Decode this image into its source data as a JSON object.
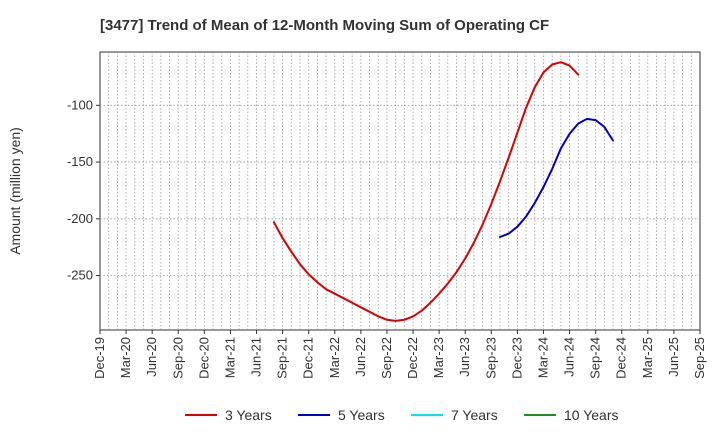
{
  "chart_data": {
    "type": "line",
    "title": "[3477]  Trend of Mean of 12-Month Moving Sum of Operating CF",
    "xlabel": "",
    "ylabel": "Amount (million yen)",
    "ylim": [
      -298,
      -53
    ],
    "yticks": [
      -100,
      -150,
      -200,
      -250
    ],
    "xlim_months": [
      0,
      69
    ],
    "x_tick_labels": [
      {
        "label": "Dec-19",
        "m": 0
      },
      {
        "label": "Mar-20",
        "m": 3
      },
      {
        "label": "Jun-20",
        "m": 6
      },
      {
        "label": "Sep-20",
        "m": 9
      },
      {
        "label": "Dec-20",
        "m": 12
      },
      {
        "label": "Mar-21",
        "m": 15
      },
      {
        "label": "Jun-21",
        "m": 18
      },
      {
        "label": "Sep-21",
        "m": 21
      },
      {
        "label": "Dec-21",
        "m": 24
      },
      {
        "label": "Mar-22",
        "m": 27
      },
      {
        "label": "Jun-22",
        "m": 30
      },
      {
        "label": "Sep-22",
        "m": 33
      },
      {
        "label": "Dec-22",
        "m": 36
      },
      {
        "label": "Mar-23",
        "m": 39
      },
      {
        "label": "Jun-23",
        "m": 42
      },
      {
        "label": "Sep-23",
        "m": 45
      },
      {
        "label": "Dec-23",
        "m": 48
      },
      {
        "label": "Mar-24",
        "m": 51
      },
      {
        "label": "Jun-24",
        "m": 54
      },
      {
        "label": "Sep-24",
        "m": 57
      },
      {
        "label": "Dec-24",
        "m": 60
      },
      {
        "label": "Mar-25",
        "m": 63
      },
      {
        "label": "Jun-25",
        "m": 66
      },
      {
        "label": "Sep-25",
        "m": 69
      }
    ],
    "series": [
      {
        "name": "3 Years",
        "color": "#dd0000",
        "start_month": 20,
        "values": [
          -203,
          -217,
          -229,
          -240,
          -249,
          -256,
          -262,
          -266,
          -270,
          -274,
          -278,
          -282,
          -286,
          -289,
          -290,
          -289,
          -286,
          -281,
          -274,
          -266,
          -257,
          -247,
          -235,
          -221,
          -205,
          -187,
          -167,
          -146,
          -124,
          -102,
          -84,
          -71,
          -64,
          -62,
          -65,
          -73
        ]
      },
      {
        "name": "5 Years",
        "color": "#0000cc",
        "start_month": 46,
        "values": [
          -216,
          -213,
          -207,
          -198,
          -186,
          -172,
          -156,
          -138,
          -125,
          -116,
          -112,
          -113,
          -119,
          -131
        ]
      },
      {
        "name": "7 Years",
        "color": "#00e5ee",
        "start_month": null,
        "values": []
      },
      {
        "name": "10 Years",
        "color": "#228b22",
        "start_month": null,
        "values": []
      }
    ],
    "grid": true,
    "legend": "bottom"
  }
}
